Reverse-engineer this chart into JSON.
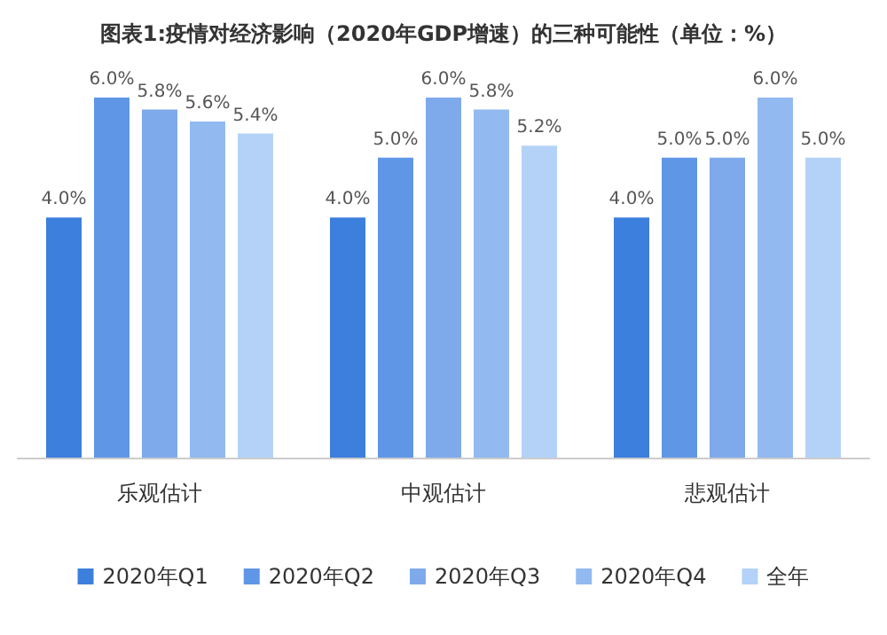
{
  "chart_data": {
    "type": "bar",
    "title": "图表1:疫情对经济影响（2020年GDP增速）的三种可能性（单位：%）",
    "categories": [
      "乐观估计",
      "中观估计",
      "悲观估计"
    ],
    "series": [
      {
        "name": "2020年Q1",
        "color": "#3d7fdd",
        "values": [
          4.0,
          4.0,
          4.0
        ],
        "value_labels": [
          "4.0%",
          "4.0%",
          "4.0%"
        ]
      },
      {
        "name": "2020年Q2",
        "color": "#5f97e6",
        "values": [
          6.0,
          5.0,
          5.0
        ],
        "value_labels": [
          "6.0%",
          "5.0%",
          "5.0%"
        ]
      },
      {
        "name": "2020年Q3",
        "color": "#7eaaec",
        "values": [
          5.8,
          6.0,
          5.0
        ],
        "value_labels": [
          "5.8%",
          "6.0%",
          "5.0%"
        ]
      },
      {
        "name": "2020年Q4",
        "color": "#92baf0",
        "values": [
          5.6,
          5.8,
          6.0
        ],
        "value_labels": [
          "5.6%",
          "5.8%",
          "6.0%"
        ]
      },
      {
        "name": "全年",
        "color": "#b4d2f7",
        "values": [
          5.4,
          5.2,
          5.0
        ],
        "value_labels": [
          "5.4%",
          "5.2%",
          "5.0%"
        ]
      }
    ],
    "legend": "bottom"
  }
}
